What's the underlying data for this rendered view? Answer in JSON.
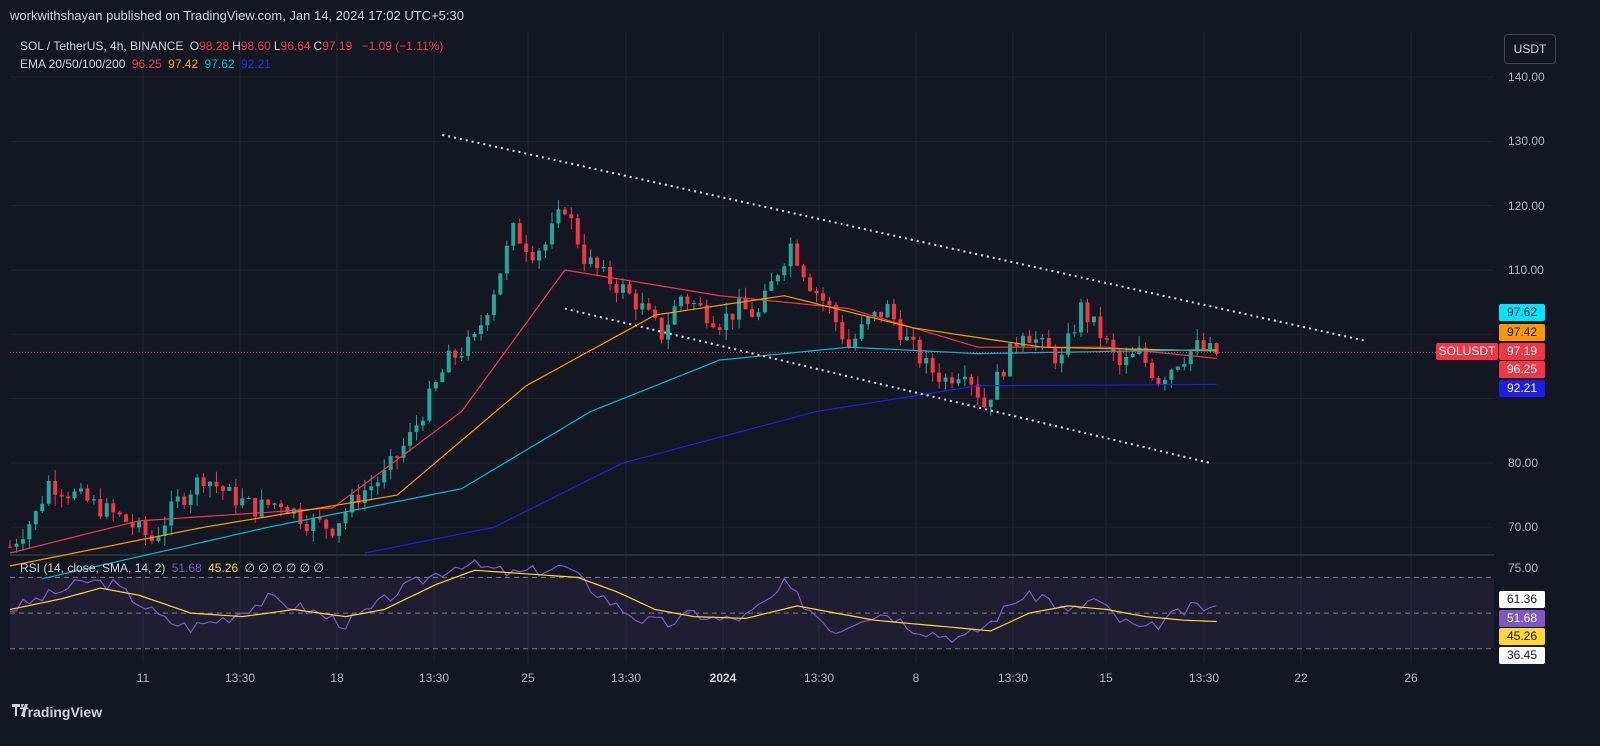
{
  "header": {
    "publisher": "workwithshayan published on TradingView.com, Jan 14, 2024 17:02 UTC+5:30"
  },
  "legend": {
    "symbol": "SOL / TetherUS, 4h, BINANCE",
    "ohlc": [
      {
        "label": "O",
        "value": "98.28"
      },
      {
        "label": "H",
        "value": "98.60"
      },
      {
        "label": "L",
        "value": "96.64"
      },
      {
        "label": "C",
        "value": "97.19"
      }
    ],
    "change": "−1.09 (−1.11%)",
    "ema_label": "EMA 20/50/100/200",
    "ema_values": [
      "96.25",
      "97.42",
      "97.62",
      "92.21"
    ],
    "rsi_label": "RSI (14, close, SMA, 14, 2)",
    "rsi_values": [
      "51.68",
      "45.26"
    ],
    "rsi_extra": "∅ ∅ ∅ ∅ ∅ ∅"
  },
  "currency_button": "USDT",
  "symbol_tag": "SOLUSDT",
  "colors": {
    "background": "#131722",
    "up": "#26a69a",
    "down": "#f23645",
    "ema20": "#f23645",
    "ema50": "#ff9800",
    "ema100": "#00bcd4",
    "ema200": "#1e1ee0",
    "rsi": "#7e57c2",
    "rsi_ma": "#fdd835"
  },
  "brand": "TradingView",
  "chart_data": [
    {
      "type": "candlestick",
      "title": "SOL / TetherUS, 4h, BINANCE",
      "y_ticks": [
        "140.00",
        "130.00",
        "120.00",
        "110.00",
        "80.00",
        "70.00"
      ],
      "x_ticks": [
        "11",
        "13:30",
        "18",
        "13:30",
        "25",
        "13:30",
        "2024",
        "13:30",
        "8",
        "13:30",
        "15",
        "13:30",
        "22",
        "26"
      ],
      "ylim": [
        66,
        147
      ],
      "last_price": 97.19,
      "price_labels": [
        {
          "text": "97.62",
          "value": 97.62,
          "series": "EMA 100"
        },
        {
          "text": "97.42",
          "value": 97.42,
          "series": "EMA 50"
        },
        {
          "text": "97.19",
          "value": 97.19,
          "series": "SOLUSDT"
        },
        {
          "text": "96.25",
          "value": 96.25,
          "series": "EMA 20"
        },
        {
          "text": "92.21",
          "value": 92.21,
          "series": "EMA 200"
        }
      ],
      "close_path": [
        [
          0,
          67
        ],
        [
          4,
          72
        ],
        [
          6,
          77
        ],
        [
          10,
          75
        ],
        [
          14,
          73
        ],
        [
          18,
          71
        ],
        [
          22,
          68
        ],
        [
          26,
          74
        ],
        [
          30,
          78
        ],
        [
          34,
          75
        ],
        [
          38,
          73
        ],
        [
          42,
          74
        ],
        [
          46,
          71
        ],
        [
          50,
          70
        ],
        [
          54,
          75
        ],
        [
          58,
          78
        ],
        [
          62,
          84
        ],
        [
          66,
          92
        ],
        [
          68,
          96
        ],
        [
          72,
          99
        ],
        [
          75,
          107
        ],
        [
          78,
          116
        ],
        [
          81,
          113
        ],
        [
          83,
          114
        ],
        [
          86,
          120
        ],
        [
          89,
          112
        ],
        [
          92,
          109
        ],
        [
          95,
          107
        ],
        [
          98,
          104
        ],
        [
          101,
          100
        ],
        [
          104,
          106
        ],
        [
          107,
          104
        ],
        [
          110,
          102
        ],
        [
          113,
          104
        ],
        [
          116,
          103
        ],
        [
          119,
          110
        ],
        [
          121,
          114
        ],
        [
          124,
          108
        ],
        [
          127,
          104
        ],
        [
          130,
          98
        ],
        [
          133,
          102
        ],
        [
          136,
          104
        ],
        [
          139,
          99
        ],
        [
          142,
          95
        ],
        [
          145,
          93
        ],
        [
          148,
          95
        ],
        [
          151,
          89
        ],
        [
          154,
          95
        ],
        [
          157,
          101
        ],
        [
          160,
          98
        ],
        [
          163,
          96
        ],
        [
          166,
          104
        ],
        [
          169,
          100
        ],
        [
          172,
          95
        ],
        [
          175,
          97
        ],
        [
          178,
          93
        ],
        [
          181,
          96
        ],
        [
          184,
          98
        ],
        [
          187,
          97
        ]
      ],
      "ema": [
        {
          "name": "EMA 20",
          "values": [
            [
              0,
              66
            ],
            [
              20,
              71
            ],
            [
              50,
              73
            ],
            [
              70,
              88
            ],
            [
              86,
              110
            ],
            [
              110,
              106
            ],
            [
              130,
              104
            ],
            [
              150,
              98
            ],
            [
              170,
              98
            ],
            [
              187,
              96.25
            ]
          ]
        },
        {
          "name": "EMA 50",
          "values": [
            [
              0,
              64
            ],
            [
              30,
              70
            ],
            [
              60,
              75
            ],
            [
              80,
              92
            ],
            [
              100,
              103
            ],
            [
              120,
              106
            ],
            [
              140,
              101
            ],
            [
              160,
              98
            ],
            [
              187,
              97.42
            ]
          ]
        },
        {
          "name": "EMA 100",
          "values": [
            [
              5,
              62
            ],
            [
              40,
              70
            ],
            [
              70,
              76
            ],
            [
              90,
              88
            ],
            [
              110,
              96
            ],
            [
              130,
              98
            ],
            [
              150,
              97
            ],
            [
              187,
              97.62
            ]
          ]
        },
        {
          "name": "EMA 200",
          "values": [
            [
              55,
              66
            ],
            [
              75,
              70
            ],
            [
              95,
              80
            ],
            [
              125,
              88
            ],
            [
              150,
              92
            ],
            [
              187,
              92.21
            ]
          ]
        }
      ],
      "trendlines": [
        {
          "from": [
            67,
            131
          ],
          "to": [
            210,
            99
          ]
        },
        {
          "from": [
            86,
            104
          ],
          "to": [
            186,
            80
          ]
        }
      ]
    },
    {
      "type": "line",
      "title": "RSI (14, close, SMA, 14, 2)",
      "y_ticks": [
        "75.00"
      ],
      "price_labels": [
        {
          "text": "61.36",
          "value": 61.36
        },
        {
          "text": "51.68",
          "value": 51.68,
          "series": "RSI"
        },
        {
          "text": "45.26",
          "value": 45.26,
          "series": "RSI-based MA"
        },
        {
          "text": "36.45",
          "value": 36.45
        }
      ],
      "bands": [
        70,
        50,
        30
      ],
      "series": [
        {
          "name": "RSI",
          "values": [
            [
              0,
              52
            ],
            [
              6,
              60
            ],
            [
              12,
              68
            ],
            [
              16,
              66
            ],
            [
              20,
              56
            ],
            [
              24,
              46
            ],
            [
              28,
              42
            ],
            [
              34,
              48
            ],
            [
              40,
              58
            ],
            [
              46,
              52
            ],
            [
              52,
              44
            ],
            [
              56,
              52
            ],
            [
              60,
              62
            ],
            [
              66,
              72
            ],
            [
              70,
              78
            ],
            [
              74,
              75
            ],
            [
              78,
              72
            ],
            [
              82,
              74
            ],
            [
              86,
              76
            ],
            [
              90,
              64
            ],
            [
              94,
              54
            ],
            [
              98,
              46
            ],
            [
              102,
              44
            ],
            [
              106,
              50
            ],
            [
              110,
              46
            ],
            [
              114,
              48
            ],
            [
              118,
              58
            ],
            [
              120,
              66
            ],
            [
              124,
              52
            ],
            [
              128,
              40
            ],
            [
              132,
              48
            ],
            [
              136,
              50
            ],
            [
              140,
              42
            ],
            [
              144,
              38
            ],
            [
              148,
              36
            ],
            [
              152,
              45
            ],
            [
              156,
              58
            ],
            [
              160,
              60
            ],
            [
              164,
              50
            ],
            [
              168,
              58
            ],
            [
              172,
              46
            ],
            [
              176,
              40
            ],
            [
              180,
              48
            ],
            [
              184,
              54
            ],
            [
              187,
              51.68
            ]
          ]
        },
        {
          "name": "RSI-based MA",
          "values": [
            [
              0,
              52
            ],
            [
              8,
              58
            ],
            [
              14,
              64
            ],
            [
              20,
              60
            ],
            [
              28,
              50
            ],
            [
              36,
              48
            ],
            [
              44,
              52
            ],
            [
              52,
              48
            ],
            [
              58,
              52
            ],
            [
              66,
              66
            ],
            [
              72,
              74
            ],
            [
              80,
              72
            ],
            [
              88,
              70
            ],
            [
              94,
              62
            ],
            [
              100,
              52
            ],
            [
              106,
              48
            ],
            [
              114,
              47
            ],
            [
              122,
              54
            ],
            [
              128,
              50
            ],
            [
              134,
              46
            ],
            [
              140,
              44
            ],
            [
              146,
              42
            ],
            [
              152,
              40
            ],
            [
              158,
              50
            ],
            [
              164,
              54
            ],
            [
              170,
              52
            ],
            [
              176,
              48
            ],
            [
              182,
              46
            ],
            [
              187,
              45.26
            ]
          ]
        }
      ]
    }
  ]
}
